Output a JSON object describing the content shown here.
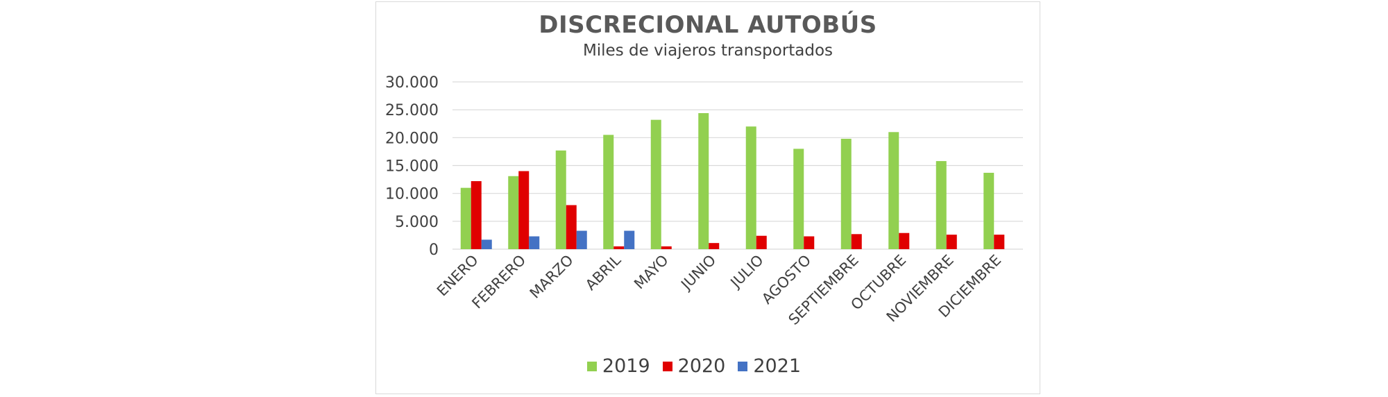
{
  "chart_data": {
    "type": "bar",
    "title": "DISCRECIONAL AUTOBÚS",
    "subtitle": "Miles de viajeros transportados",
    "xlabel": "",
    "ylabel": "",
    "ylim": [
      0,
      30000
    ],
    "yticks": [
      "0",
      "5.000",
      "10.000",
      "15.000",
      "20.000",
      "25.000",
      "30.000"
    ],
    "grid": true,
    "legend_position": "bottom",
    "categories": [
      "ENERO",
      "FEBRERO",
      "MARZO",
      "ABRIL",
      "MAYO",
      "JUNIO",
      "JULIO",
      "AGOSTO",
      "SEPTIEMBRE",
      "OCTUBRE",
      "NOVIEMBRE",
      "DICIEMBRE"
    ],
    "series": [
      {
        "name": "2019",
        "color": "#92d050",
        "values": [
          11000,
          13100,
          17700,
          20500,
          23200,
          24400,
          22000,
          18000,
          19800,
          21000,
          15800,
          13700
        ]
      },
      {
        "name": "2020",
        "color": "#e00000",
        "values": [
          12200,
          14000,
          7900,
          500,
          500,
          1100,
          2400,
          2300,
          2700,
          2900,
          2600,
          2600
        ]
      },
      {
        "name": "2021",
        "color": "#4472c4",
        "values": [
          1700,
          2300,
          3300,
          3300,
          null,
          null,
          null,
          null,
          null,
          null,
          null,
          null
        ]
      }
    ]
  }
}
